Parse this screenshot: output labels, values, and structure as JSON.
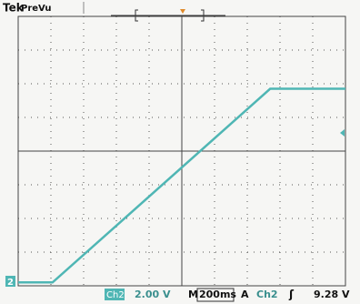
{
  "header": {
    "brand": "Tek",
    "mode": "PreVu"
  },
  "chart_data": {
    "type": "line",
    "x": [
      0,
      1.05,
      7.7,
      10
    ],
    "series": [
      {
        "name": "Ch2",
        "color": "#4fb6b4",
        "values": [
          0.1,
          0.1,
          5.85,
          5.85
        ]
      }
    ],
    "xlim": [
      0,
      10
    ],
    "ylim": [
      0,
      8
    ],
    "xticks": [
      0,
      1,
      2,
      3,
      4,
      5,
      6,
      7,
      8,
      9,
      10
    ],
    "yticks": [
      0,
      1,
      2,
      3,
      4,
      5,
      6,
      7,
      8
    ],
    "grid": true
  },
  "ground_marker": "2",
  "status": {
    "channel": "Ch2",
    "volts_per_div": "2.00 V",
    "time_label": "M",
    "time_per_div": "200ms",
    "trigger_label": "A",
    "trigger_source": "Ch2",
    "trigger_slope": "ʃ",
    "trigger_level": "9.28 V"
  }
}
